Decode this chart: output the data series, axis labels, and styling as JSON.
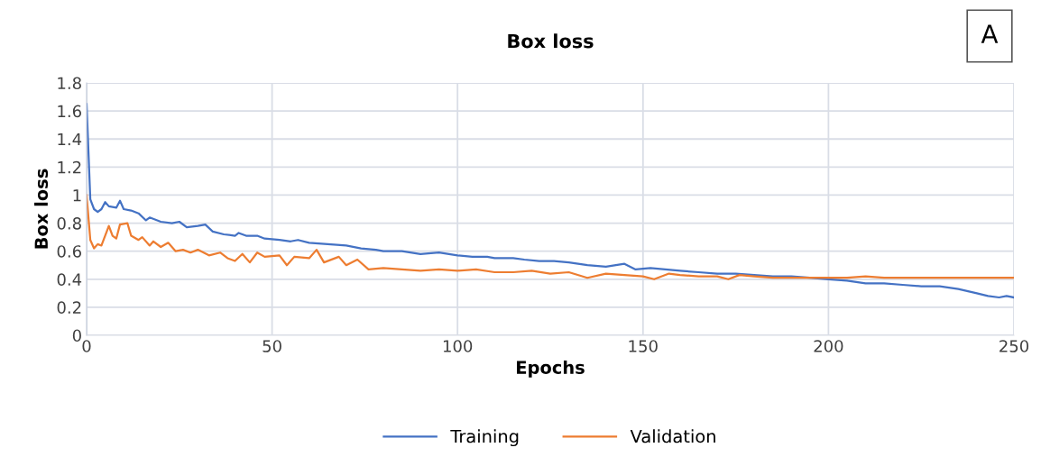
{
  "chart_data": {
    "type": "line",
    "title": "Box loss",
    "xlabel": "Epochs",
    "ylabel": "Box loss",
    "annotations": [
      "A"
    ],
    "xlim": [
      0,
      250
    ],
    "xticks": [
      0,
      50,
      100,
      150,
      200,
      250
    ],
    "ylim": [
      0,
      1.8
    ],
    "yticks": [
      0,
      0.2,
      0.4,
      0.6,
      0.8,
      1,
      1.2,
      1.4,
      1.6,
      1.8
    ],
    "grid": true,
    "legend": "bottom",
    "marker": "none",
    "line_style": "solid",
    "series": [
      {
        "name": "Training",
        "color": "#4472c4",
        "x": [
          0,
          1,
          2,
          3,
          4,
          5,
          6,
          8,
          9,
          10,
          12,
          14,
          16,
          17,
          20,
          23,
          25,
          27,
          30,
          32,
          34,
          37,
          40,
          41,
          43,
          46,
          48,
          52,
          55,
          57,
          60,
          65,
          70,
          74,
          78,
          80,
          85,
          90,
          95,
          100,
          104,
          108,
          110,
          115,
          118,
          122,
          126,
          130,
          135,
          140,
          145,
          148,
          152,
          156,
          160,
          165,
          170,
          175,
          180,
          185,
          190,
          195,
          200,
          205,
          210,
          215,
          220,
          225,
          230,
          235,
          240,
          243,
          246,
          248,
          250
        ],
        "values": [
          1.65,
          0.97,
          0.9,
          0.88,
          0.9,
          0.95,
          0.92,
          0.91,
          0.96,
          0.9,
          0.89,
          0.87,
          0.82,
          0.84,
          0.81,
          0.8,
          0.81,
          0.77,
          0.78,
          0.79,
          0.74,
          0.72,
          0.71,
          0.73,
          0.71,
          0.71,
          0.69,
          0.68,
          0.67,
          0.68,
          0.66,
          0.65,
          0.64,
          0.62,
          0.61,
          0.6,
          0.6,
          0.58,
          0.59,
          0.57,
          0.56,
          0.56,
          0.55,
          0.55,
          0.54,
          0.53,
          0.53,
          0.52,
          0.5,
          0.49,
          0.51,
          0.47,
          0.48,
          0.47,
          0.46,
          0.45,
          0.44,
          0.44,
          0.43,
          0.42,
          0.42,
          0.41,
          0.4,
          0.39,
          0.37,
          0.37,
          0.36,
          0.35,
          0.35,
          0.33,
          0.3,
          0.28,
          0.27,
          0.28,
          0.27
        ]
      },
      {
        "name": "Validation",
        "color": "#ed7d31",
        "x": [
          0,
          1,
          2,
          3,
          4,
          6,
          7,
          8,
          9,
          11,
          12,
          14,
          15,
          17,
          18,
          20,
          22,
          24,
          26,
          28,
          30,
          33,
          36,
          38,
          40,
          42,
          44,
          46,
          48,
          52,
          54,
          56,
          60,
          62,
          64,
          68,
          70,
          73,
          76,
          80,
          85,
          90,
          95,
          100,
          105,
          110,
          115,
          120,
          125,
          130,
          135,
          140,
          145,
          150,
          153,
          157,
          160,
          165,
          170,
          173,
          176,
          180,
          185,
          190,
          195,
          200,
          205,
          210,
          215,
          220,
          225,
          230,
          235,
          240,
          245,
          250
        ],
        "values": [
          1.0,
          0.68,
          0.62,
          0.65,
          0.64,
          0.78,
          0.71,
          0.69,
          0.79,
          0.8,
          0.71,
          0.68,
          0.7,
          0.64,
          0.67,
          0.63,
          0.66,
          0.6,
          0.61,
          0.59,
          0.61,
          0.57,
          0.59,
          0.55,
          0.53,
          0.58,
          0.52,
          0.59,
          0.56,
          0.57,
          0.5,
          0.56,
          0.55,
          0.61,
          0.52,
          0.56,
          0.5,
          0.54,
          0.47,
          0.48,
          0.47,
          0.46,
          0.47,
          0.46,
          0.47,
          0.45,
          0.45,
          0.46,
          0.44,
          0.45,
          0.41,
          0.44,
          0.43,
          0.42,
          0.4,
          0.44,
          0.43,
          0.42,
          0.42,
          0.4,
          0.43,
          0.42,
          0.41,
          0.41,
          0.41,
          0.41,
          0.41,
          0.42,
          0.41,
          0.41,
          0.41,
          0.41,
          0.41,
          0.41,
          0.41,
          0.41
        ]
      }
    ]
  }
}
